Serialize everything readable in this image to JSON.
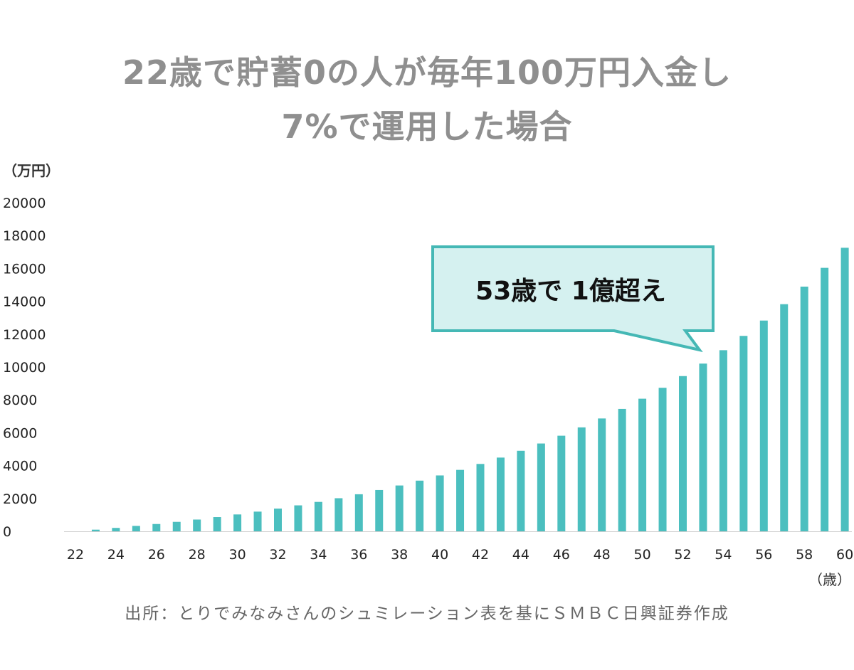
{
  "title_lines": [
    "22歳で貯蓄0の人が毎年100万円入金し",
    "7%で運用した場合"
  ],
  "source": "出所：とりでみなみさんのシュミレーション表を基にＳＭＢＣ日興証券作成",
  "colors": {
    "bar": "#4bbfbf",
    "callout_fill": "#d5f1f0",
    "callout_border": "#45b8b5",
    "title": "#8f8f8f"
  },
  "chart_data": {
    "type": "bar",
    "title": "22歳で貯蓄0の人が毎年100万円入金し 7%で運用した場合",
    "ylabel": "（万円）",
    "xlabel": "（歳）",
    "ylim": [
      0,
      20000
    ],
    "yticks": [
      0,
      2000,
      4000,
      6000,
      8000,
      10000,
      12000,
      14000,
      16000,
      18000,
      20000
    ],
    "xtick_labels": [
      "22",
      "24",
      "26",
      "28",
      "30",
      "32",
      "34",
      "36",
      "38",
      "40",
      "42",
      "44",
      "46",
      "48",
      "50",
      "52",
      "54",
      "56",
      "58",
      "60"
    ],
    "categories": [
      22,
      23,
      24,
      25,
      26,
      27,
      28,
      29,
      30,
      31,
      32,
      33,
      34,
      35,
      36,
      37,
      38,
      39,
      40,
      41,
      42,
      43,
      44,
      45,
      46,
      47,
      48,
      49,
      50,
      51,
      52,
      53,
      54,
      55,
      56,
      57,
      58,
      59,
      60
    ],
    "values": [
      0,
      100,
      207,
      329,
      444,
      575,
      715,
      865,
      1026,
      1198,
      1382,
      1579,
      1789,
      2014,
      2255,
      2513,
      2789,
      3084,
      3400,
      3738,
      4100,
      4487,
      4901,
      5344,
      5818,
      6325,
      6868,
      7449,
      8070,
      8735,
      9447,
      10208,
      11023,
      11894,
      12827,
      13825,
      14893,
      16035,
      17257
    ],
    "grid": false,
    "annotation": {
      "text": "53歳で 1億超え",
      "target_x": 53
    }
  }
}
